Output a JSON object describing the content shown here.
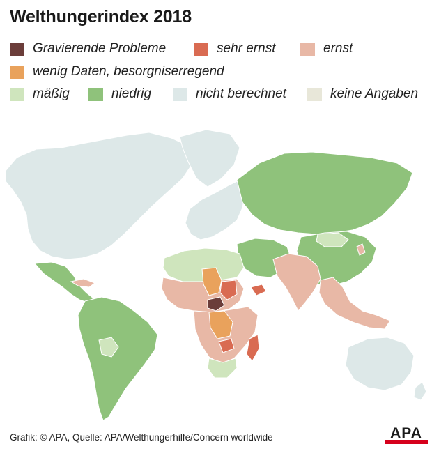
{
  "title": "Welthungerindex 2018",
  "legend": [
    {
      "label": "Gravierende Probleme",
      "color": "#6b3d3a"
    },
    {
      "label": "sehr ernst",
      "color": "#d96b52"
    },
    {
      "label": "ernst",
      "color": "#e8b8a6"
    },
    {
      "label": "wenig Daten, besorgniserregend",
      "color": "#e9a25c"
    },
    {
      "label": "mäßig",
      "color": "#cfe5bd"
    },
    {
      "label": "niedrig",
      "color": "#8fc27b"
    },
    {
      "label": "nicht berechnet",
      "color": "#dde8e8"
    },
    {
      "label": "keine Angaben",
      "color": "#e8e7d9"
    }
  ],
  "map": {
    "colors": {
      "land_nc": "#dde8e8",
      "niedrig": "#8fc27b",
      "maessig": "#cfe5bd",
      "ernst": "#e8b8a6",
      "sehr_ernst": "#d96b52",
      "wenig_daten": "#e9a25c",
      "gravierend": "#6b3d3a",
      "border": "#ffffff"
    }
  },
  "credit": "Grafik: © APA, Quelle: APA/Welthungerhilfe/Concern worldwide",
  "logo": {
    "text": "APA",
    "color": "#d6001c"
  }
}
